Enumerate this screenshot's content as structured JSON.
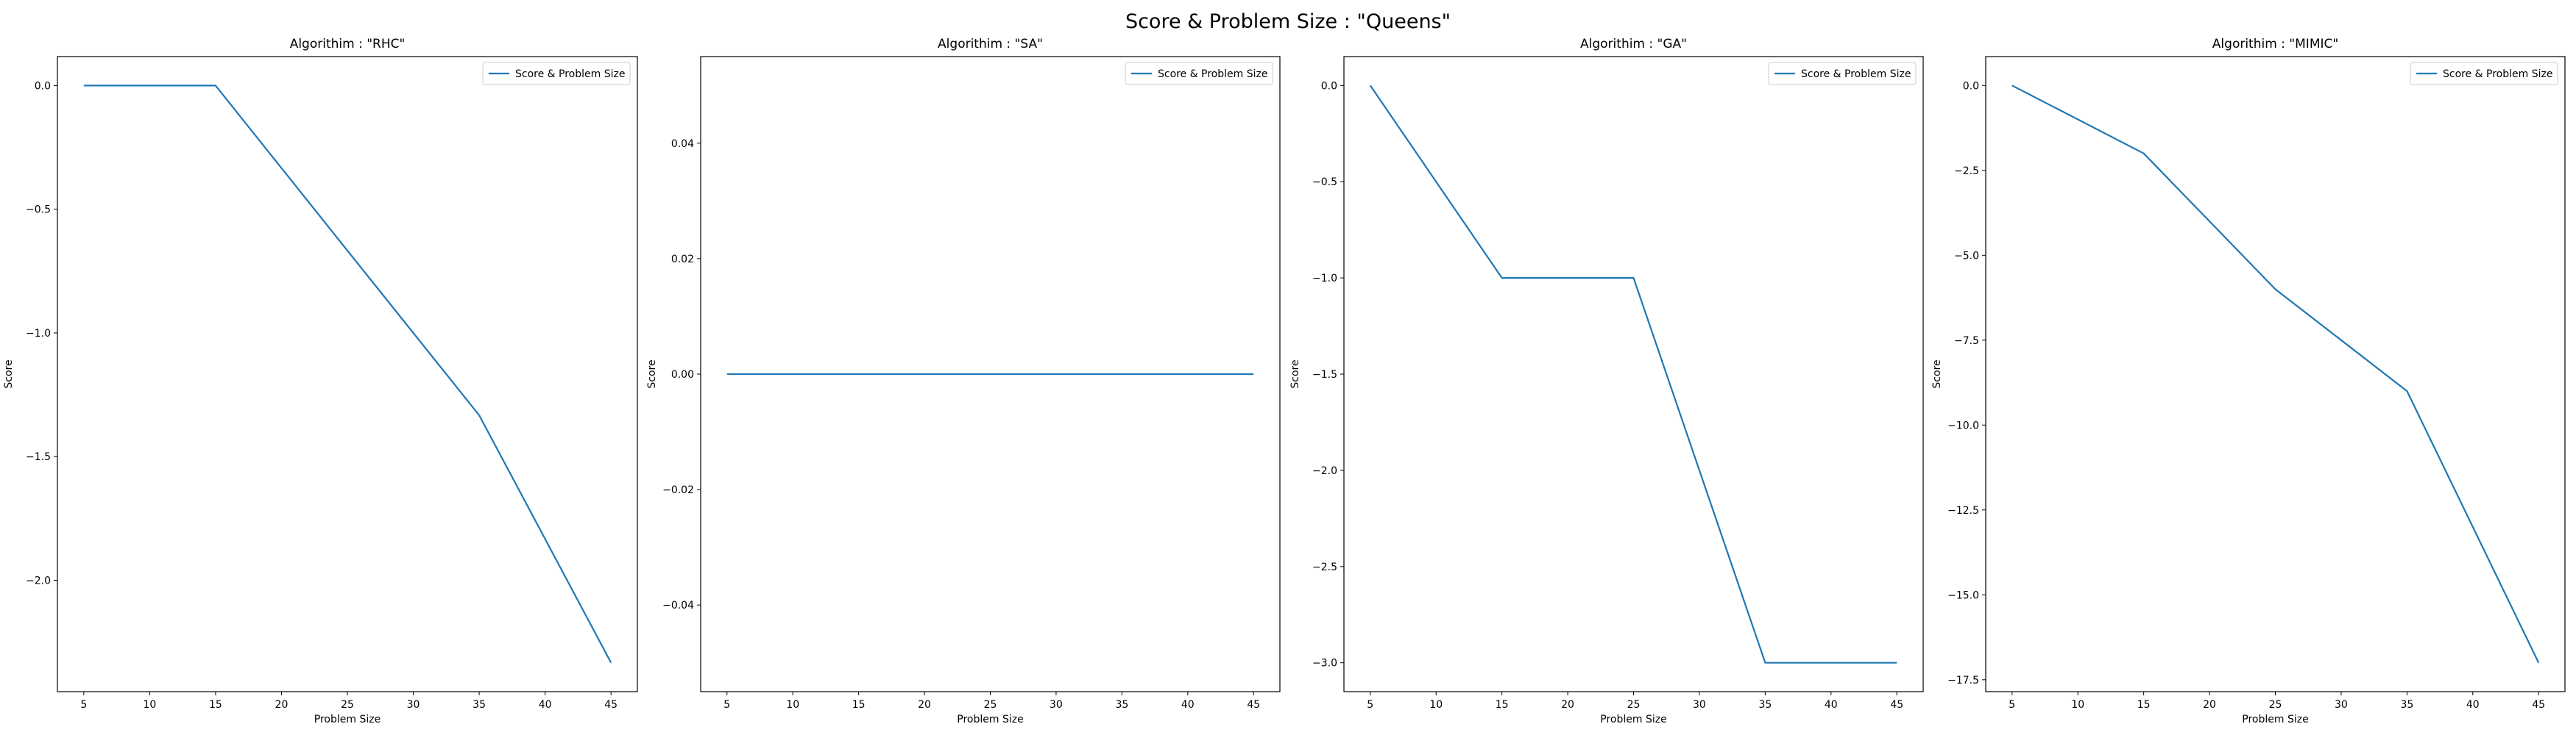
{
  "figure": {
    "suptitle": "Score & Problem Size : \"Queens\""
  },
  "colors": {
    "line": "#1f77b4",
    "axes": "#000000",
    "legend_border": "#cccccc"
  },
  "chart_data": [
    {
      "type": "line",
      "title": "Algorithim : \"RHC\"",
      "xlabel": "Problem Size",
      "ylabel": "Score",
      "series": [
        {
          "name": "Score & Problem Size",
          "x": [
            5,
            15,
            25,
            35,
            45
          ],
          "y": [
            0,
            0,
            -0.667,
            -1.333,
            -2.333
          ]
        }
      ],
      "xlim": [
        3,
        47
      ],
      "ylim": [
        -2.45,
        0.117
      ],
      "xticks": [
        5,
        10,
        15,
        20,
        25,
        30,
        35,
        40,
        45
      ],
      "yticks": [
        0,
        -0.5,
        -1.0,
        -1.5,
        -2.0
      ],
      "ytick_labels": [
        "0.0",
        "−0.5",
        "−1.0",
        "−1.5",
        "−2.0"
      ],
      "legend": "upper right",
      "grid": false
    },
    {
      "type": "line",
      "title": "Algorithim : \"SA\"",
      "xlabel": "Problem Size",
      "ylabel": "Score",
      "series": [
        {
          "name": "Score & Problem Size",
          "x": [
            5,
            15,
            25,
            35,
            45
          ],
          "y": [
            0,
            0,
            0,
            0,
            0
          ]
        }
      ],
      "xlim": [
        3,
        47
      ],
      "ylim": [
        -0.055,
        0.055
      ],
      "xticks": [
        5,
        10,
        15,
        20,
        25,
        30,
        35,
        40,
        45
      ],
      "yticks": [
        0.04,
        0.02,
        0.0,
        -0.02,
        -0.04
      ],
      "ytick_labels": [
        "0.04",
        "0.02",
        "0.00",
        "−0.02",
        "−0.04"
      ],
      "legend": "upper right",
      "grid": false
    },
    {
      "type": "line",
      "title": "Algorithim : \"GA\"",
      "xlabel": "Problem Size",
      "ylabel": "Score",
      "series": [
        {
          "name": "Score & Problem Size",
          "x": [
            5,
            15,
            25,
            35,
            45
          ],
          "y": [
            0,
            -1,
            -1,
            -3,
            -3
          ]
        }
      ],
      "xlim": [
        3,
        47
      ],
      "ylim": [
        -3.15,
        0.15
      ],
      "xticks": [
        5,
        10,
        15,
        20,
        25,
        30,
        35,
        40,
        45
      ],
      "yticks": [
        0,
        -0.5,
        -1.0,
        -1.5,
        -2.0,
        -2.5,
        -3.0
      ],
      "ytick_labels": [
        "0.0",
        "−0.5",
        "−1.0",
        "−1.5",
        "−2.0",
        "−2.5",
        "−3.0"
      ],
      "legend": "upper right",
      "grid": false
    },
    {
      "type": "line",
      "title": "Algorithim : \"MIMIC\"",
      "xlabel": "Problem Size",
      "ylabel": "Score",
      "series": [
        {
          "name": "Score & Problem Size",
          "x": [
            5,
            15,
            25,
            35,
            45
          ],
          "y": [
            0,
            -2,
            -6,
            -9,
            -17
          ]
        }
      ],
      "xlim": [
        3,
        47
      ],
      "ylim": [
        -17.85,
        0.85
      ],
      "xticks": [
        5,
        10,
        15,
        20,
        25,
        30,
        35,
        40,
        45
      ],
      "yticks": [
        0,
        -2.5,
        -5.0,
        -7.5,
        -10.0,
        -12.5,
        -15.0,
        -17.5
      ],
      "ytick_labels": [
        "0.0",
        "−2.5",
        "−5.0",
        "−7.5",
        "−10.0",
        "−12.5",
        "−15.0",
        "−17.5"
      ],
      "legend": "upper right",
      "grid": false
    }
  ]
}
